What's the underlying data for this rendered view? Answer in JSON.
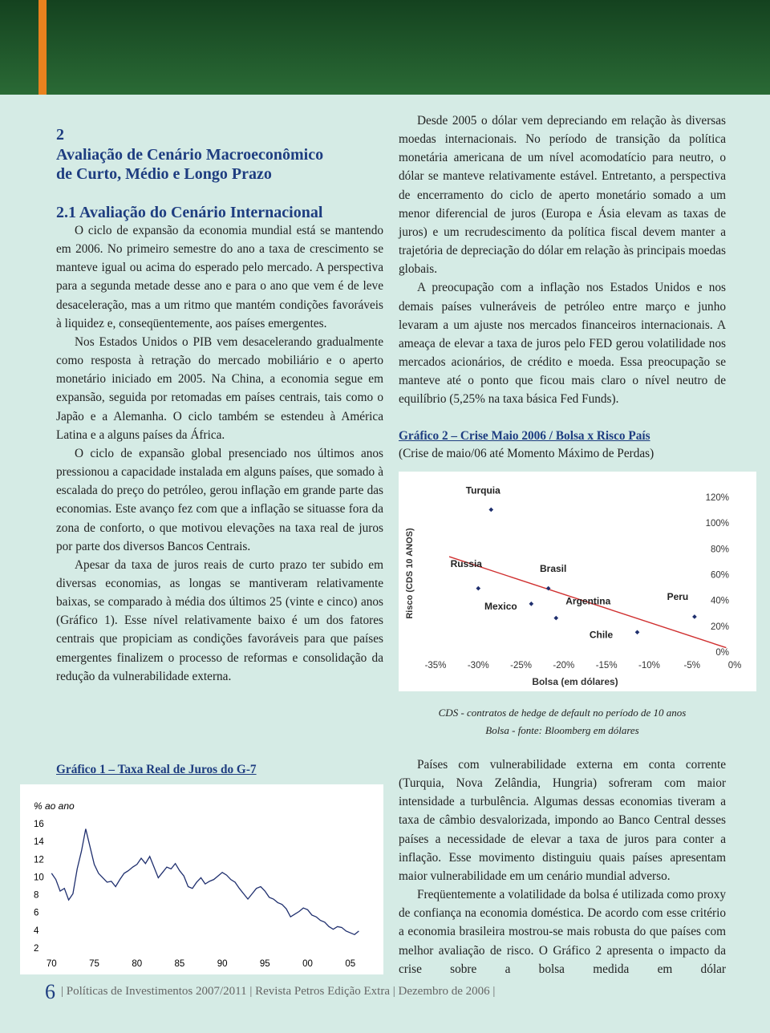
{
  "header": {
    "number": "2",
    "title": [
      "Avaliação de Cenário Macroeconômico",
      "de Curto, Médio e Longo Prazo"
    ],
    "section": "2.1 Avaliação do Cenário Internacional"
  },
  "left_paragraphs": [
    "O ciclo de expansão da economia mundial está se mantendo em 2006. No primeiro semestre do ano a taxa de crescimento se manteve igual ou acima do esperado pelo mercado. A perspectiva para a segunda metade desse ano e para o ano que vem é de leve desaceleração, mas a um ritmo que mantém condições favoráveis à liquidez e, conseqüentemente, aos países emergentes.",
    "Nos Estados Unidos o PIB vem desacelerando gradualmente como resposta à retração do mercado mobiliário e o aperto monetário iniciado em 2005. Na China, a economia segue em expansão, seguida por retomadas em países centrais, tais como o Japão e a Alemanha. O ciclo também se estendeu à América Latina e a alguns países da África.",
    "O ciclo de expansão global presenciado nos últimos anos pressionou a capacidade instalada em alguns países, que somado à escalada do preço do petróleo, gerou inflação em grande parte das economias. Este avanço fez com que a inflação se situasse fora da zona de conforto, o que motivou elevações na taxa real de juros por parte dos diversos Bancos Centrais.",
    "Apesar da taxa de juros reais de curto prazo ter subido em diversas economias, as longas se mantiveram relativamente baixas, se comparado à média dos últimos 25 (vinte e cinco) anos (Gráfico 1). Esse nível relativamente baixo é um dos fatores centrais que propiciam as condições favoráveis para que países emergentes finalizem o processo de reformas e consolidação da redução da vulnerabilidade externa."
  ],
  "right_paragraphs_top": [
    "Desde 2005 o dólar vem depreciando em relação às diversas moedas internacionais. No período de transição da política monetária americana de um nível acomodatício para neutro, o dólar se manteve relativamente estável. Entretanto, a perspectiva de encerramento do ciclo de aperto monetário somado a um menor diferencial de juros (Europa e Ásia elevam as taxas de juros) e um recrudescimento da política fiscal devem manter a trajetória de depreciação do dólar em relação às principais moedas globais.",
    "A preocupação com a inflação nos Estados Unidos e nos demais países vulneráveis de petróleo entre março e junho levaram a um ajuste nos mercados financeiros internacionais. A ameaça de elevar a taxa de juros pelo FED gerou volatilidade nos mercados acionários, de crédito e moeda. Essa preocupação se manteve até o ponto que ficou mais claro o nível neutro de equilíbrio (5,25% na taxa básica Fed Funds)."
  ],
  "right_paragraphs_bottom": [
    "Países com vulnerabilidade externa em conta corrente (Turquia, Nova Zelândia, Hungria) sofreram com maior intensidade a turbulência. Algumas dessas economias tiveram a taxa de câmbio desvalorizada, impondo ao Banco Central desses países a necessidade de elevar a taxa de juros para conter a inflação. Esse movimento distinguiu quais países apresentam maior vulnerabilidade em um cenário mundial adverso.",
    "Freqüentemente a volatilidade da bolsa é utilizada como proxy de confiança na economia doméstica. De acordo com esse critério a economia brasileira mostrou-se mais robusta do que países com melhor avaliação de risco. O Gráfico 2 apresenta o impacto da crise sobre a bolsa medida em dólar"
  ],
  "caption": [
    "CDS - contratos de hedge de default no período de 10 anos",
    "Bolsa - fonte: Bloomberg em dólares"
  ],
  "footer": {
    "page_number": "6",
    "items": [
      "Políticas de Investimentos 2007/2011",
      "Revista Petros Edição Extra",
      "Dezembro de 2006"
    ]
  },
  "chart_data": [
    {
      "type": "line",
      "title": "Gráfico 1 – Taxa Real de Juros do G-7",
      "y_label": "% ao ano",
      "color": "#1f2f6e",
      "x": [
        1970,
        1970.5,
        1971,
        1971.5,
        1972,
        1972.5,
        1973,
        1973.5,
        1974,
        1974.5,
        1975,
        1975.5,
        1976,
        1976.5,
        1977,
        1977.5,
        1978,
        1978.5,
        1979,
        1979.5,
        1980,
        1980.5,
        1981,
        1981.5,
        1982,
        1982.5,
        1983,
        1983.5,
        1984,
        1984.5,
        1985,
        1985.5,
        1986,
        1986.5,
        1987,
        1987.5,
        1988,
        1988.5,
        1989,
        1989.5,
        1990,
        1990.5,
        1991,
        1991.5,
        1992,
        1992.5,
        1993,
        1993.5,
        1994,
        1994.5,
        1995,
        1995.5,
        1996,
        1996.5,
        1997,
        1997.5,
        1998,
        1998.5,
        1999,
        1999.5,
        2000,
        2000.5,
        2001,
        2001.5,
        2002,
        2002.5,
        2003,
        2003.5,
        2004,
        2004.5,
        2005,
        2005.5,
        2006
      ],
      "values": [
        10.5,
        9.8,
        8.5,
        8.8,
        7.5,
        8.2,
        11,
        13,
        15.5,
        13.5,
        11.5,
        10.5,
        10,
        9.5,
        9.6,
        9.0,
        9.8,
        10.5,
        10.8,
        11.2,
        11.5,
        12.2,
        11.6,
        12.4,
        11.2,
        10.0,
        10.6,
        11.2,
        11.0,
        11.6,
        10.8,
        10.2,
        9.0,
        8.8,
        9.5,
        10.0,
        9.3,
        9.6,
        9.8,
        10.2,
        10.6,
        10.3,
        9.8,
        9.5,
        8.8,
        8.2,
        7.6,
        8.2,
        8.8,
        9.0,
        8.5,
        7.8,
        7.6,
        7.2,
        7.0,
        6.5,
        5.6,
        5.9,
        6.2,
        6.6,
        6.4,
        5.8,
        5.6,
        5.2,
        5.0,
        4.5,
        4.2,
        4.5,
        4.4,
        4.0,
        3.8,
        3.6,
        4.0
      ],
      "xlim": [
        1969.5,
        2007
      ],
      "ylim": [
        2,
        16
      ],
      "xticks": [
        {
          "value": 1970,
          "label": "70"
        },
        {
          "value": 1975,
          "label": "75"
        },
        {
          "value": 1980,
          "label": "80"
        },
        {
          "value": 1985,
          "label": "85"
        },
        {
          "value": 1990,
          "label": "90"
        },
        {
          "value": 1995,
          "label": "95"
        },
        {
          "value": 2000,
          "label": "00"
        },
        {
          "value": 2005,
          "label": "05"
        }
      ],
      "yticks": [
        2,
        4,
        6,
        8,
        10,
        12,
        14,
        16
      ],
      "grid": false
    },
    {
      "type": "scatter",
      "title": "Gráfico 2 – Crise Maio 2006 / Bolsa x Risco País",
      "subtitle": "(Crise de maio/06 até Momento Máximo de Perdas)",
      "x_label": "Bolsa (em dólares)",
      "y_label": "Risco (CDS 10 ANOS)",
      "color": "#1f2f6e",
      "trendline_color": "#d03030",
      "labels": [
        "Turquia",
        "Russia",
        "Mexico",
        "Brasil",
        "Argentina",
        "Chile",
        "Peru"
      ],
      "x": [
        -28.5,
        -30,
        -23.8,
        -21.8,
        -20.9,
        -11.4,
        -4.7
      ],
      "values": [
        111,
        50,
        38,
        50,
        27,
        16,
        28
      ],
      "xlim": [
        -35,
        0
      ],
      "ylim": [
        0,
        120
      ],
      "xticks": [
        {
          "value": -35,
          "label": "-35%"
        },
        {
          "value": -30,
          "label": "-30%"
        },
        {
          "value": -25,
          "label": "-25%"
        },
        {
          "value": -20,
          "label": "-20%"
        },
        {
          "value": -15,
          "label": "-15%"
        },
        {
          "value": -10,
          "label": "-10%"
        },
        {
          "value": -5,
          "label": "-5%"
        },
        {
          "value": 0,
          "label": "0%"
        }
      ],
      "yticks": [
        {
          "value": 0,
          "label": "0%"
        },
        {
          "value": 20,
          "label": "20%"
        },
        {
          "value": 40,
          "label": "40%"
        },
        {
          "value": 60,
          "label": "60%"
        },
        {
          "value": 80,
          "label": "80%"
        },
        {
          "value": 100,
          "label": "100%"
        },
        {
          "value": 120,
          "label": "120%"
        }
      ],
      "grid": false
    }
  ]
}
